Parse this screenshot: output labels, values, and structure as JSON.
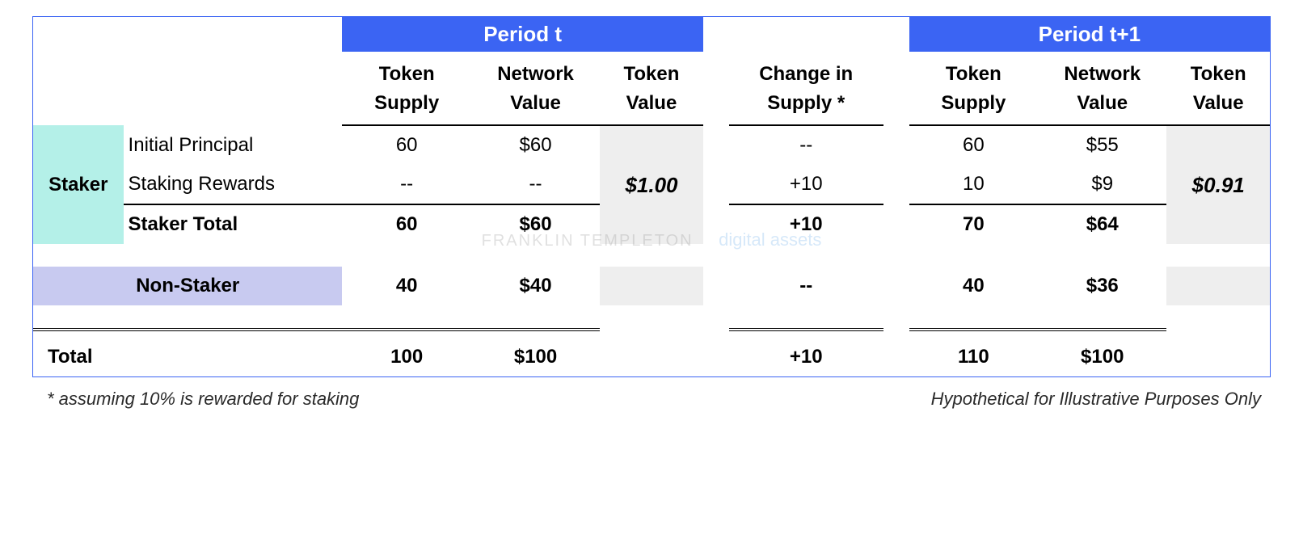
{
  "periods": {
    "t": {
      "label": "Period t"
    },
    "tp1": {
      "label": "Period t+1"
    }
  },
  "columns": {
    "token_supply": "Token\nSupply",
    "network_value": "Network\nValue",
    "token_value": "Token\nValue",
    "change_supply": "Change in\nSupply *"
  },
  "groups": {
    "staker": "Staker",
    "non_staker": "Non-Staker"
  },
  "rows": {
    "initial_principal": {
      "label": "Initial Principal",
      "t_supply": "60",
      "t_nv": "$60",
      "change": "--",
      "tp1_supply": "60",
      "tp1_nv": "$55"
    },
    "staking_rewards": {
      "label": "Staking Rewards",
      "t_supply": "--",
      "t_nv": "--",
      "change": "+10",
      "tp1_supply": "10",
      "tp1_nv": "$9"
    },
    "staker_total": {
      "label": "Staker Total",
      "t_supply": "60",
      "t_nv": "$60",
      "t_tv": "$1.00",
      "change": "+10",
      "tp1_supply": "70",
      "tp1_nv": "$64",
      "tp1_tv": "$0.91"
    },
    "non_staker": {
      "t_supply": "40",
      "t_nv": "$40",
      "change": "--",
      "tp1_supply": "40",
      "tp1_nv": "$36"
    },
    "total": {
      "label": "Total",
      "t_supply": "100",
      "t_nv": "$100",
      "change": "+10",
      "tp1_supply": "110",
      "tp1_nv": "$100"
    }
  },
  "watermark": {
    "brand": "FRANKLIN TEMPLETON",
    "sub": "digital assets"
  },
  "footnotes": {
    "left": "* assuming 10% is rewarded for staking",
    "right": "Hypothetical for Illustrative Purposes Only"
  },
  "styling": {
    "border_color": "#3b64f3",
    "header_bg": "#3b64f3",
    "header_text": "#ffffff",
    "staker_bg": "#b4f0e8",
    "nonstaker_bg": "#c8caf0",
    "tokenvalue_bg": "#eeeeee",
    "base_fontsize": 24,
    "header_fontsize": 26
  }
}
